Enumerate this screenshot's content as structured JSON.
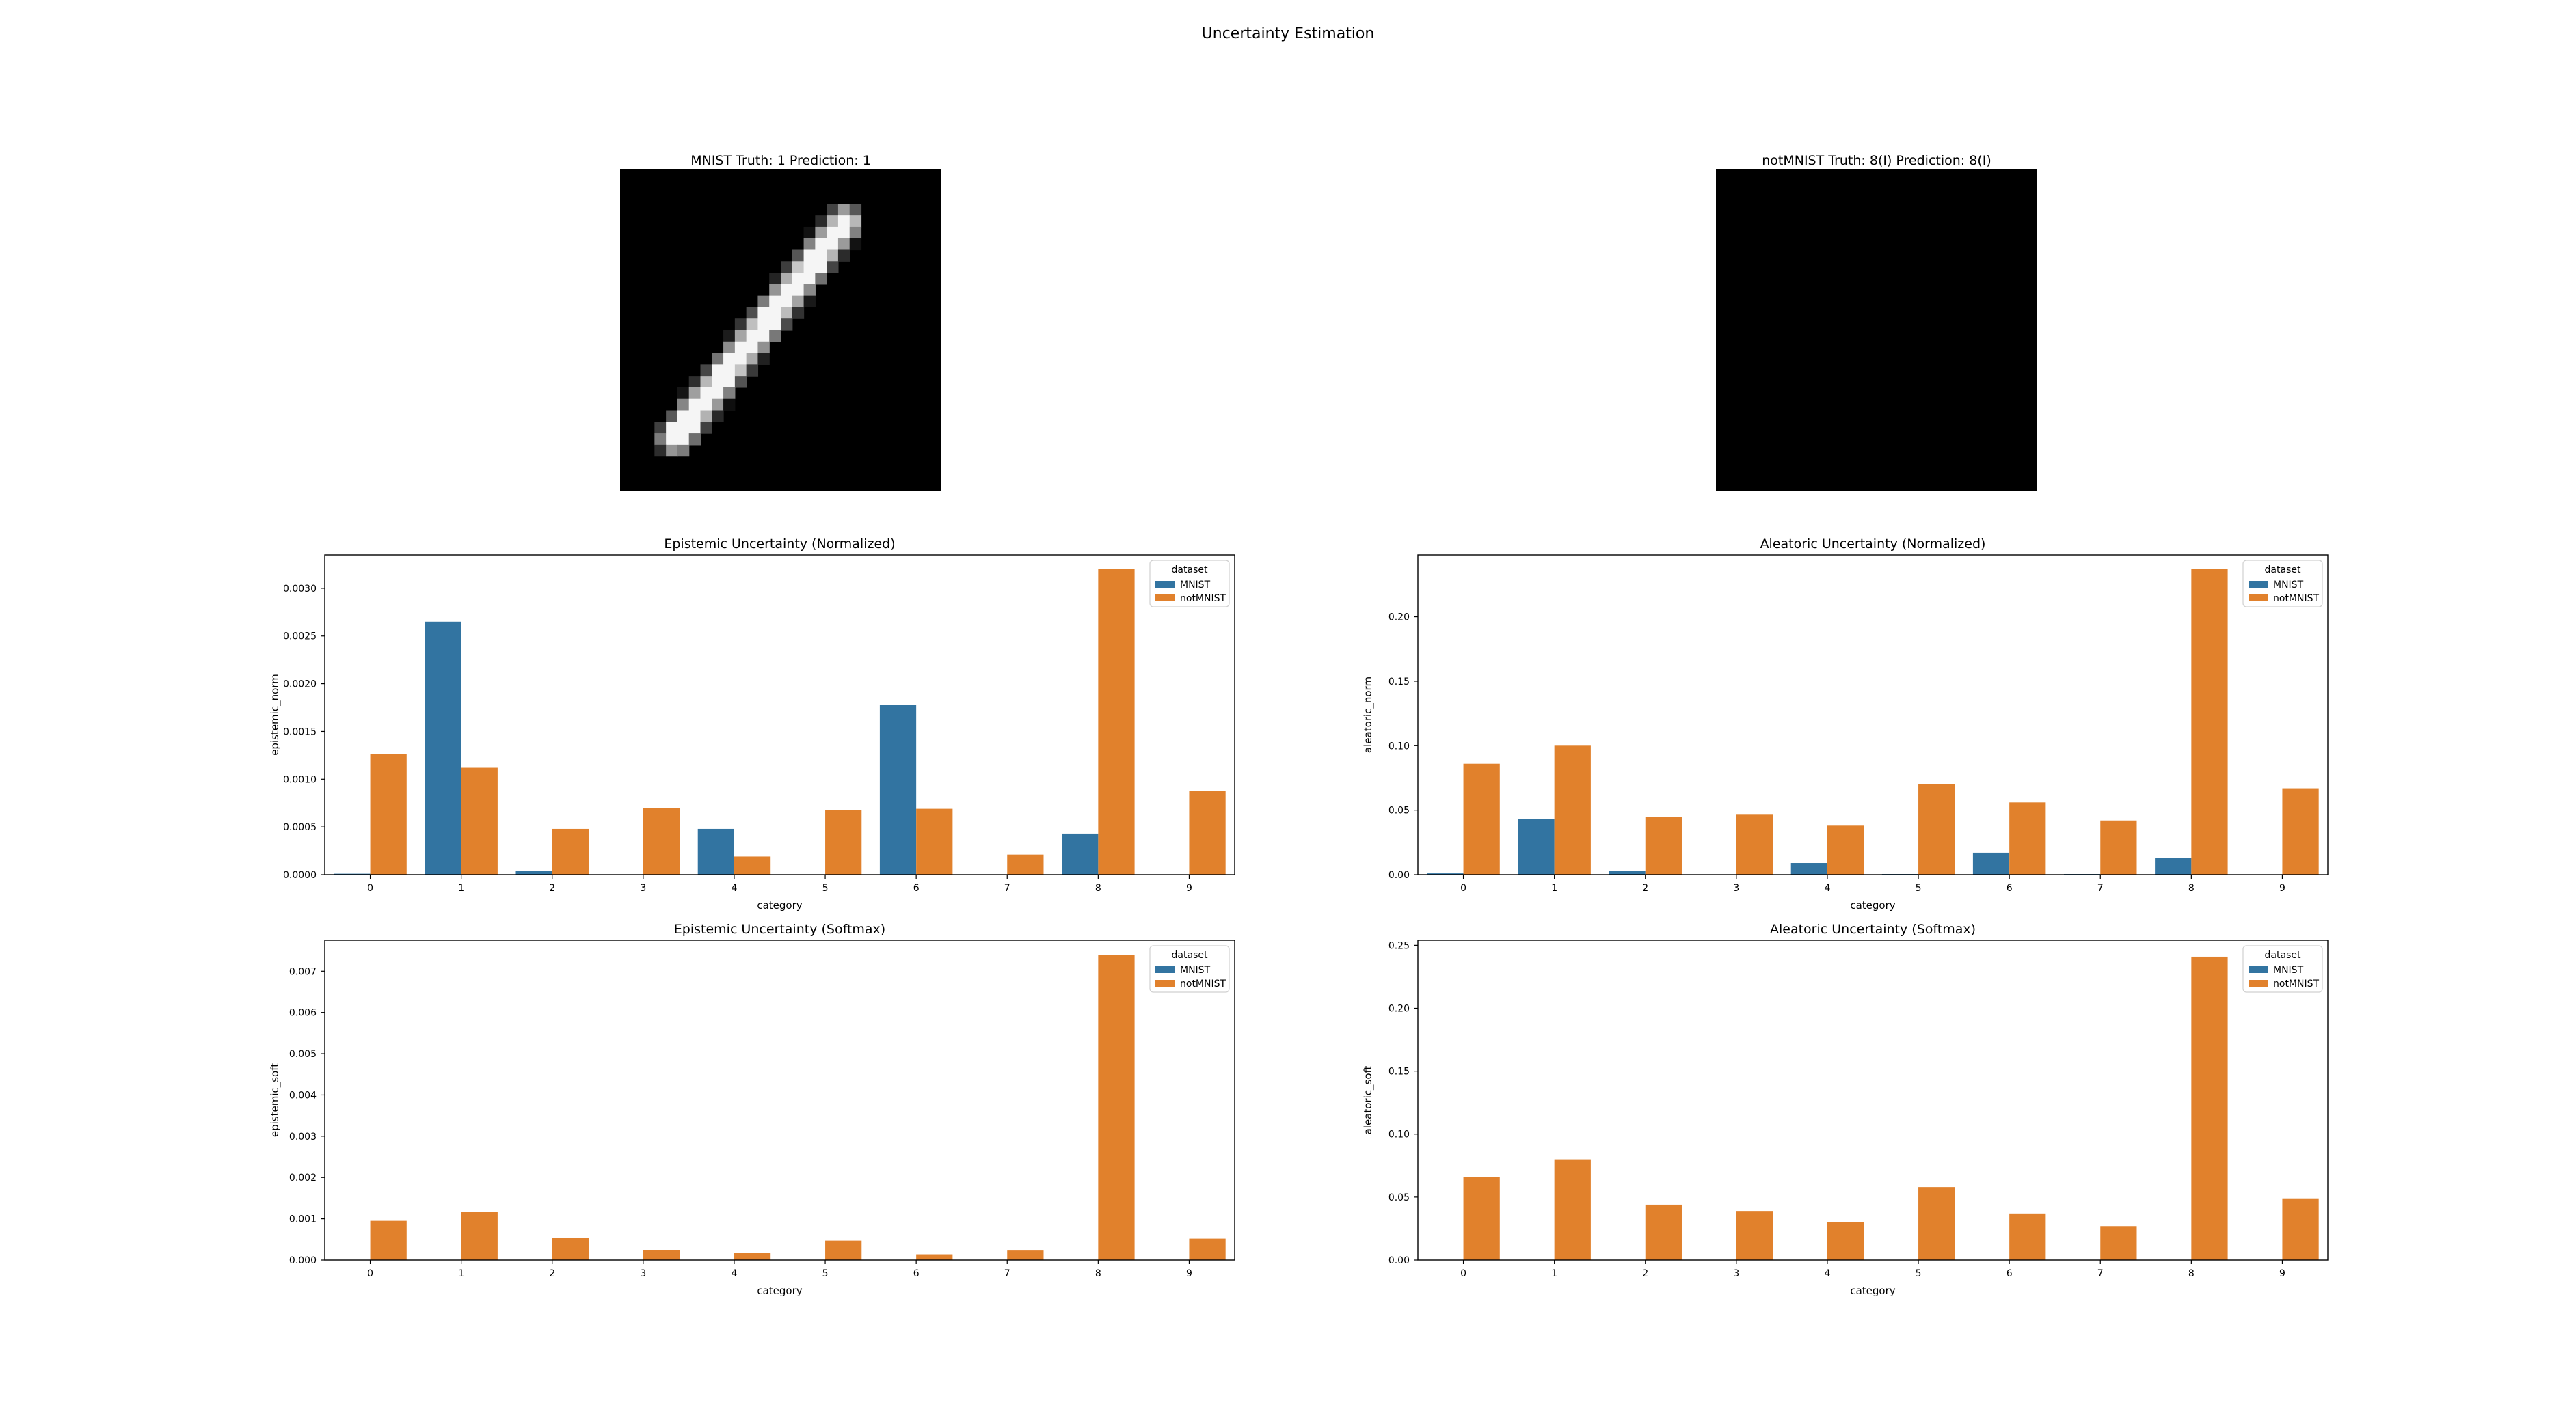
{
  "figure": {
    "suptitle": "Uncertainty Estimation"
  },
  "images": [
    {
      "title": "MNIST Truth: 1 Prediction: 1",
      "content": "handwritten digit 1 on black background"
    },
    {
      "title": "notMNIST Truth: 8(I) Prediction: 8(I)",
      "content": "all black image"
    }
  ],
  "colors": {
    "MNIST": "#3274a1",
    "notMNIST": "#e1812c"
  },
  "legend": {
    "title": "dataset",
    "labels": [
      "MNIST",
      "notMNIST"
    ]
  },
  "chart_data": [
    {
      "type": "bar",
      "title": "Epistemic Uncertainty (Normalized)",
      "xlabel": "category",
      "ylabel": "epistemic_norm",
      "categories": [
        "0",
        "1",
        "2",
        "3",
        "4",
        "5",
        "6",
        "7",
        "8",
        "9"
      ],
      "ylim": [
        0,
        0.00335
      ],
      "yticks": [
        "0.0000",
        "0.0005",
        "0.0010",
        "0.0015",
        "0.0020",
        "0.0025",
        "0.0030"
      ],
      "legend_position": "upper right",
      "series": [
        {
          "name": "MNIST",
          "values": [
            1e-05,
            0.00265,
            4e-05,
            0,
            0.00048,
            0,
            0.00178,
            0,
            0.00043,
            0
          ]
        },
        {
          "name": "notMNIST",
          "values": [
            0.00126,
            0.00112,
            0.00048,
            0.0007,
            0.00019,
            0.00068,
            0.00069,
            0.00021,
            0.0032,
            0.00088
          ]
        }
      ]
    },
    {
      "type": "bar",
      "title": "Aleatoric Uncertainty (Normalized)",
      "xlabel": "category",
      "ylabel": "aleatoric_norm",
      "categories": [
        "0",
        "1",
        "2",
        "3",
        "4",
        "5",
        "6",
        "7",
        "8",
        "9"
      ],
      "ylim": [
        0,
        0.248
      ],
      "yticks": [
        "0.00",
        "0.05",
        "0.10",
        "0.15",
        "0.20"
      ],
      "legend_position": "upper right",
      "series": [
        {
          "name": "MNIST",
          "values": [
            0.001,
            0.043,
            0.003,
            0,
            0.009,
            0.0005,
            0.017,
            0.0005,
            0.013,
            0
          ]
        },
        {
          "name": "notMNIST",
          "values": [
            0.086,
            0.1,
            0.045,
            0.047,
            0.038,
            0.07,
            0.056,
            0.042,
            0.237,
            0.067
          ]
        }
      ]
    },
    {
      "type": "bar",
      "title": "Epistemic Uncertainty (Softmax)",
      "xlabel": "category",
      "ylabel": "epistemic_soft",
      "categories": [
        "0",
        "1",
        "2",
        "3",
        "4",
        "5",
        "6",
        "7",
        "8",
        "9"
      ],
      "ylim": [
        0,
        0.00775
      ],
      "yticks": [
        "0.000",
        "0.001",
        "0.002",
        "0.003",
        "0.004",
        "0.005",
        "0.006",
        "0.007"
      ],
      "legend_position": "upper right",
      "series": [
        {
          "name": "MNIST",
          "values": [
            0,
            0,
            0,
            0,
            0,
            0,
            0,
            0,
            0,
            0
          ]
        },
        {
          "name": "notMNIST",
          "values": [
            0.00095,
            0.00117,
            0.00053,
            0.00024,
            0.00018,
            0.00047,
            0.00014,
            0.00023,
            0.0074,
            0.00052
          ]
        }
      ]
    },
    {
      "type": "bar",
      "title": "Aleatoric Uncertainty (Softmax)",
      "xlabel": "category",
      "ylabel": "aleatoric_soft",
      "categories": [
        "0",
        "1",
        "2",
        "3",
        "4",
        "5",
        "6",
        "7",
        "8",
        "9"
      ],
      "ylim": [
        0,
        0.254
      ],
      "yticks": [
        "0.00",
        "0.05",
        "0.10",
        "0.15",
        "0.20",
        "0.25"
      ],
      "legend_position": "upper right",
      "series": [
        {
          "name": "MNIST",
          "values": [
            0,
            0,
            0,
            0,
            0,
            0,
            0,
            0,
            0,
            0
          ]
        },
        {
          "name": "notMNIST",
          "values": [
            0.066,
            0.08,
            0.044,
            0.039,
            0.03,
            0.058,
            0.037,
            0.027,
            0.241,
            0.049
          ]
        }
      ]
    }
  ]
}
